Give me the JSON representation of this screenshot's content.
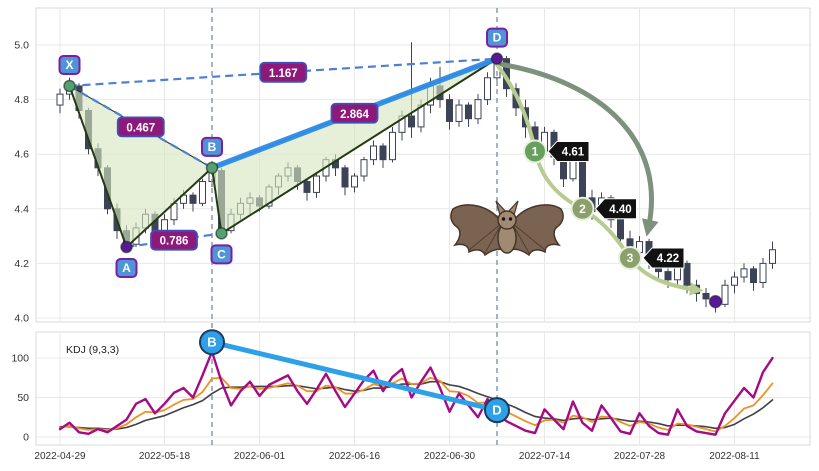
{
  "icons": {
    "bat": "bat-pattern-mascot"
  },
  "colors": {
    "background": "#ffffff",
    "grid": "#e8e8e8",
    "panel_border": "#d9d9d9",
    "axis_text": "#333333",
    "down_candle": "#3c4356",
    "up_candle": "#ffffff",
    "pattern_fill": "#d6e6c2",
    "pattern_line": "#243a12",
    "thick_blue": "#2e8ce6",
    "dashed_blue": "#4d7fd4",
    "divergence_blue": "#2da0e8",
    "ratio_bg": "#8d1a7a",
    "ratio_border": "#3f51b5",
    "point_label_bg": "#4e94d6",
    "point_label_border": "#7a1fa0",
    "marker_green": "#55a070",
    "marker_purple": "#5a1a96",
    "target_green": "#67a05e",
    "target_olive": "#8ba06b",
    "price_tag_bg": "#111111",
    "arrow_dark": "#7d917d",
    "arrow_light": "#b8cb90",
    "kdj_k": "#ef9226",
    "kdj_d": "#3f3f46",
    "kdj_j": "#a40b84",
    "vline": "#7f93aa"
  },
  "chart_data": {
    "type": "candlestick",
    "title": "",
    "panels": [
      "price",
      "KDJ"
    ],
    "x_labels": [
      "2022-04-29",
      "2022-05-18",
      "2022-06-01",
      "2022-06-16",
      "2022-06-30",
      "2022-07-14",
      "2022-07-28",
      "2022-08-11"
    ],
    "x_label_indices": [
      0,
      11,
      21,
      31,
      41,
      51,
      61,
      71
    ],
    "y_ticks_price": [
      5.0,
      4.8,
      4.6,
      4.4,
      4.2,
      4.0
    ],
    "y_ticks_kdj": [
      100,
      50,
      0
    ],
    "ylim_price": [
      3.95,
      5.05
    ],
    "candles_ohlc": [
      [
        4.78,
        4.84,
        4.75,
        4.82
      ],
      [
        4.82,
        4.88,
        4.8,
        4.85
      ],
      [
        4.85,
        4.86,
        4.73,
        4.76
      ],
      [
        4.76,
        4.77,
        4.6,
        4.62
      ],
      [
        4.62,
        4.64,
        4.52,
        4.55
      ],
      [
        4.55,
        4.56,
        4.38,
        4.4
      ],
      [
        4.4,
        4.42,
        4.29,
        4.32
      ],
      [
        4.32,
        4.34,
        4.24,
        4.27
      ],
      [
        4.27,
        4.35,
        4.26,
        4.33
      ],
      [
        4.33,
        4.4,
        4.31,
        4.38
      ],
      [
        4.38,
        4.39,
        4.29,
        4.31
      ],
      [
        4.31,
        4.38,
        4.3,
        4.36
      ],
      [
        4.36,
        4.44,
        4.34,
        4.42
      ],
      [
        4.42,
        4.47,
        4.4,
        4.45
      ],
      [
        4.45,
        4.46,
        4.39,
        4.42
      ],
      [
        4.42,
        4.51,
        4.41,
        4.5
      ],
      [
        4.5,
        4.56,
        4.48,
        4.54
      ],
      [
        4.54,
        4.55,
        4.29,
        4.32
      ],
      [
        4.32,
        4.4,
        4.31,
        4.38
      ],
      [
        4.38,
        4.44,
        4.36,
        4.42
      ],
      [
        4.42,
        4.46,
        4.38,
        4.44
      ],
      [
        4.44,
        4.45,
        4.39,
        4.41
      ],
      [
        4.41,
        4.49,
        4.4,
        4.48
      ],
      [
        4.48,
        4.53,
        4.45,
        4.52
      ],
      [
        4.52,
        4.57,
        4.5,
        4.55
      ],
      [
        4.55,
        4.56,
        4.47,
        4.5
      ],
      [
        4.5,
        4.51,
        4.43,
        4.46
      ],
      [
        4.46,
        4.53,
        4.44,
        4.52
      ],
      [
        4.52,
        4.59,
        4.5,
        4.58
      ],
      [
        4.58,
        4.6,
        4.52,
        4.55
      ],
      [
        4.55,
        4.56,
        4.45,
        4.48
      ],
      [
        4.48,
        4.53,
        4.46,
        4.52
      ],
      [
        4.52,
        4.59,
        4.5,
        4.58
      ],
      [
        4.58,
        4.65,
        4.56,
        4.63
      ],
      [
        4.63,
        4.64,
        4.55,
        4.58
      ],
      [
        4.58,
        4.7,
        4.57,
        4.68
      ],
      [
        4.68,
        4.76,
        4.65,
        4.74
      ],
      [
        4.74,
        5.01,
        4.66,
        4.7
      ],
      [
        4.7,
        4.8,
        4.68,
        4.78
      ],
      [
        4.78,
        4.88,
        4.75,
        4.85
      ],
      [
        4.85,
        4.92,
        4.77,
        4.8
      ],
      [
        4.8,
        4.82,
        4.69,
        4.72
      ],
      [
        4.72,
        4.8,
        4.7,
        4.78
      ],
      [
        4.78,
        4.79,
        4.7,
        4.73
      ],
      [
        4.73,
        4.82,
        4.71,
        4.8
      ],
      [
        4.8,
        4.9,
        4.78,
        4.88
      ],
      [
        4.88,
        4.97,
        4.85,
        4.95
      ],
      [
        4.95,
        4.96,
        4.81,
        4.84
      ],
      [
        4.84,
        4.86,
        4.74,
        4.77
      ],
      [
        4.77,
        4.8,
        4.66,
        4.7
      ],
      [
        4.7,
        4.72,
        4.58,
        4.61
      ],
      [
        4.61,
        4.7,
        4.6,
        4.68
      ],
      [
        4.68,
        4.69,
        4.56,
        4.59
      ],
      [
        4.59,
        4.61,
        4.48,
        4.51
      ],
      [
        4.51,
        4.6,
        4.5,
        4.58
      ],
      [
        4.58,
        4.59,
        4.41,
        4.44
      ],
      [
        4.44,
        4.47,
        4.36,
        4.39
      ],
      [
        4.39,
        4.46,
        4.38,
        4.44
      ],
      [
        4.44,
        4.45,
        4.33,
        4.36
      ],
      [
        4.36,
        4.37,
        4.26,
        4.29
      ],
      [
        4.29,
        4.32,
        4.21,
        4.24
      ],
      [
        4.24,
        4.3,
        4.22,
        4.28
      ],
      [
        4.28,
        4.29,
        4.18,
        4.21
      ],
      [
        4.21,
        4.23,
        4.14,
        4.17
      ],
      [
        4.17,
        4.2,
        4.11,
        4.14
      ],
      [
        4.14,
        4.22,
        4.12,
        4.2
      ],
      [
        4.2,
        4.21,
        4.09,
        4.12
      ],
      [
        4.12,
        4.14,
        4.06,
        4.09
      ],
      [
        4.09,
        4.11,
        4.04,
        4.07
      ],
      [
        4.07,
        4.08,
        4.02,
        4.05
      ],
      [
        4.05,
        4.14,
        4.04,
        4.12
      ],
      [
        4.12,
        4.17,
        4.09,
        4.15
      ],
      [
        4.15,
        4.2,
        4.13,
        4.18
      ],
      [
        4.18,
        4.19,
        4.1,
        4.13
      ],
      [
        4.13,
        4.22,
        4.11,
        4.2
      ],
      [
        4.2,
        4.28,
        4.18,
        4.25
      ]
    ],
    "kdj": {
      "label": "KDJ (9,3,3)",
      "K": [
        12,
        14,
        11,
        9,
        10,
        9,
        11,
        16,
        25,
        32,
        31,
        34,
        41,
        47,
        48,
        57,
        74,
        75,
        62,
        61,
        64,
        61,
        62,
        65,
        68,
        65,
        58,
        58,
        65,
        63,
        55,
        55,
        60,
        67,
        64,
        68,
        74,
        67,
        68,
        75,
        71,
        58,
        57,
        52,
        43,
        44,
        39,
        32,
        26,
        20,
        15,
        21,
        22,
        18,
        27,
        25,
        19,
        26,
        25,
        19,
        14,
        19,
        17,
        12,
        9,
        17,
        16,
        13,
        10,
        7,
        14,
        24,
        36,
        40,
        53,
        68
      ],
      "D": [
        13,
        13,
        12,
        11,
        11,
        10,
        10,
        12,
        16,
        21,
        24,
        27,
        32,
        37,
        41,
        46,
        55,
        62,
        63,
        63,
        64,
        64,
        64,
        64,
        65,
        65,
        63,
        61,
        62,
        63,
        60,
        58,
        59,
        62,
        62,
        64,
        67,
        67,
        67,
        70,
        70,
        66,
        64,
        60,
        55,
        51,
        47,
        42,
        37,
        31,
        26,
        24,
        23,
        21,
        23,
        24,
        22,
        23,
        24,
        22,
        20,
        20,
        19,
        17,
        14,
        15,
        15,
        14,
        13,
        11,
        12,
        16,
        23,
        29,
        37,
        47
      ],
      "J": [
        10,
        18,
        6,
        4,
        10,
        6,
        14,
        22,
        42,
        48,
        30,
        42,
        56,
        62,
        50,
        78,
        108,
        70,
        40,
        58,
        70,
        52,
        66,
        72,
        78,
        58,
        42,
        60,
        80,
        58,
        38,
        55,
        72,
        84,
        58,
        76,
        86,
        50,
        70,
        88,
        62,
        32,
        55,
        40,
        25,
        48,
        30,
        20,
        14,
        8,
        5,
        35,
        22,
        10,
        45,
        18,
        8,
        40,
        24,
        7,
        4,
        30,
        14,
        5,
        3,
        35,
        14,
        7,
        5,
        3,
        30,
        46,
        62,
        50,
        82,
        100
      ]
    },
    "harmonic_pattern": {
      "name": "bat",
      "points": [
        {
          "label": "X",
          "i": 1,
          "price": 4.85,
          "marker": "green",
          "label_side": "above"
        },
        {
          "label": "A",
          "i": 7,
          "price": 4.26,
          "marker": "purple",
          "label_side": "below"
        },
        {
          "label": "B",
          "i": 16,
          "price": 4.55,
          "marker": "green",
          "label_side": "above"
        },
        {
          "label": "C",
          "i": 17,
          "price": 4.31,
          "marker": "green",
          "label_side": "below"
        },
        {
          "label": "D",
          "i": 46,
          "price": 4.95,
          "marker": "purple",
          "label_side": "above"
        }
      ],
      "segments_solid": [
        [
          "X",
          "A"
        ],
        [
          "A",
          "B"
        ],
        [
          "B",
          "C"
        ],
        [
          "C",
          "D"
        ]
      ],
      "segments_dashed": [
        [
          "X",
          "B"
        ],
        [
          "A",
          "C"
        ],
        [
          "X",
          "D"
        ]
      ],
      "segment_thick": [
        "B",
        "D"
      ],
      "fill_triangles": [
        [
          "X",
          "A",
          "B"
        ],
        [
          "B",
          "C",
          "D"
        ]
      ],
      "ratio_labels": [
        {
          "label": "0.467",
          "from": "X",
          "to": "B"
        },
        {
          "label": "0.786",
          "from": "A",
          "to": "C"
        },
        {
          "label": "1.167",
          "from": "X",
          "to": "D"
        },
        {
          "label": "2.864",
          "from": "B",
          "to": "D"
        }
      ],
      "vline_points": [
        "B",
        "D"
      ],
      "targets": [
        {
          "n": "1",
          "i": 50,
          "price": 4.61,
          "tag": "4.61"
        },
        {
          "n": "2",
          "i": 55,
          "price": 4.4,
          "tag": "4.40"
        },
        {
          "n": "3",
          "i": 60,
          "price": 4.22,
          "tag": "4.22"
        }
      ],
      "final_dot": {
        "i": 69,
        "price": 4.06
      },
      "kdj_divergence": {
        "from": {
          "i": 16,
          "v": 120,
          "label": "B"
        },
        "to": {
          "i": 46,
          "v": 34,
          "label": "D"
        }
      }
    }
  }
}
